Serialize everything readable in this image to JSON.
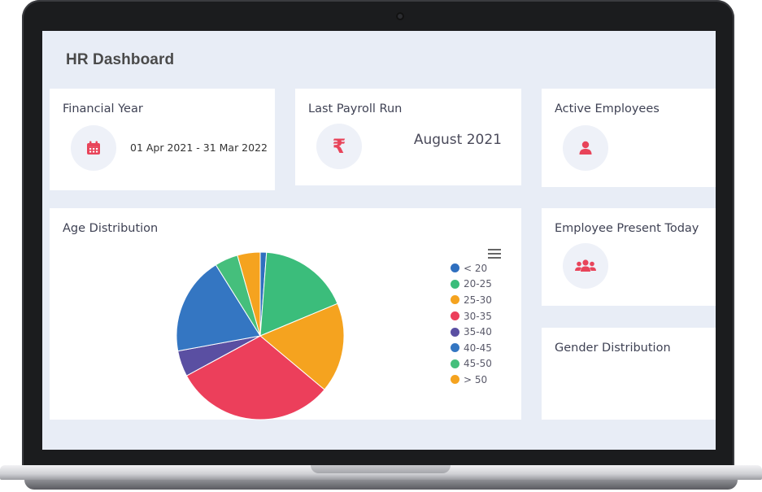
{
  "dashboard": {
    "title": "HR Dashboard",
    "cards": {
      "financial_year": {
        "title": "Financial Year",
        "value": "01 Apr 2021 - 31 Mar 2022",
        "icon": "calendar-icon"
      },
      "last_payroll": {
        "title": "Last Payroll Run",
        "value": "August 2021",
        "icon": "rupee-icon"
      },
      "active_employees": {
        "title": "Active Employees",
        "icon": "user-icon"
      },
      "present_today": {
        "title": "Employee Present Today",
        "icon": "users-icon"
      },
      "gender": {
        "title": "Gender Distribution"
      },
      "age": {
        "title": "Age Distribution"
      }
    },
    "accent_color": "#e8445a"
  },
  "chart_data": {
    "type": "pie",
    "title": "Age Distribution",
    "categories": [
      "< 20",
      "20-25",
      "25-30",
      "30-35",
      "35-40",
      "40-45",
      "45-50",
      "> 50"
    ],
    "values": [
      1.2,
      17.5,
      17.4,
      31.0,
      5.0,
      19.0,
      4.5,
      4.4
    ],
    "colors": [
      "#2f6fbf",
      "#3bbd7b",
      "#f5a31f",
      "#ec3f5b",
      "#5a4fa2",
      "#3476c2",
      "#45bf7c",
      "#f5a31f"
    ],
    "legend_position": "right"
  }
}
